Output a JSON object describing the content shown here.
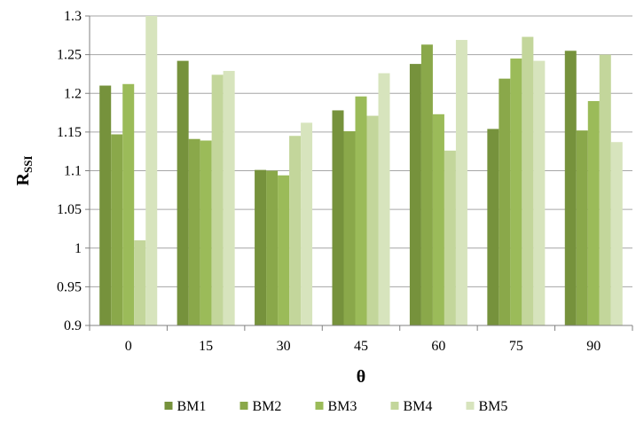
{
  "chart_data": {
    "type": "bar",
    "title": "",
    "xlabel": "θ",
    "ylabel_main": "R",
    "ylabel_sub": "SSI",
    "categories": [
      "0",
      "15",
      "30",
      "45",
      "60",
      "75",
      "90"
    ],
    "ylim": [
      0.9,
      1.3
    ],
    "yticks": [
      0.9,
      0.95,
      1,
      1.05,
      1.1,
      1.15,
      1.2,
      1.25,
      1.3
    ],
    "ytick_labels": [
      "0.9",
      "0.95",
      "1",
      "1.05",
      "1.1",
      "1.15",
      "1.2",
      "1.25",
      "1.3"
    ],
    "grid": true,
    "legend_position": "bottom",
    "series": [
      {
        "name": "BM1",
        "color": "#76923c",
        "values": [
          1.21,
          1.242,
          1.101,
          1.178,
          1.238,
          1.154,
          1.255
        ]
      },
      {
        "name": "BM2",
        "color": "#8aa84a",
        "values": [
          1.147,
          1.141,
          1.1,
          1.151,
          1.263,
          1.219,
          1.152
        ]
      },
      {
        "name": "BM3",
        "color": "#9bbb59",
        "values": [
          1.212,
          1.139,
          1.094,
          1.196,
          1.173,
          1.245,
          1.19
        ]
      },
      {
        "name": "BM4",
        "color": "#c3d69b",
        "values": [
          1.01,
          1.224,
          1.145,
          1.171,
          1.126,
          1.273,
          1.25
        ]
      },
      {
        "name": "BM5",
        "color": "#d7e4bd",
        "values": [
          1.3,
          1.229,
          1.162,
          1.226,
          1.269,
          1.242,
          1.137
        ]
      }
    ]
  }
}
